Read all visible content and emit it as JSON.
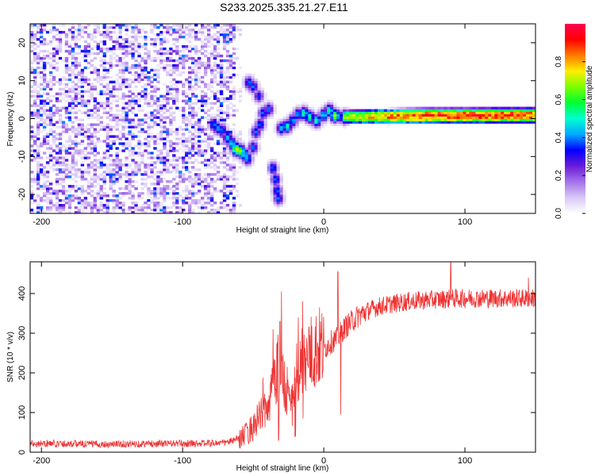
{
  "title": "S233.2025.335.21.27.E11",
  "chart_data": [
    {
      "type": "heatmap",
      "xlabel": "Height of straight line (km)",
      "ylabel": "Frequency (Hz)",
      "xlim": [
        -208,
        150
      ],
      "ylim": [
        -25,
        25
      ],
      "xticks": [
        -200,
        -100,
        0,
        100
      ],
      "yticks": [
        -20,
        -10,
        0,
        10,
        20
      ],
      "colorbar": {
        "label": "Normalized spectral amplitude",
        "range": [
          0,
          1
        ],
        "ticks": [
          "0.0",
          "0.2",
          "0.4",
          "0.6",
          "0.8"
        ],
        "tick_values": [
          0.0,
          0.2,
          0.4,
          0.6,
          0.8
        ],
        "colors": [
          "#ffffff",
          "#d9c8f5",
          "#a472ea",
          "#6a1bd9",
          "#0000ff",
          "#00a9ff",
          "#00ffd0",
          "#00ff33",
          "#7aff00",
          "#ffee00",
          "#ff7a00",
          "#ff0000",
          "#ff0050"
        ]
      },
      "noise_region": {
        "x_range": [
          -208,
          -63
        ],
        "amplitude": 0.25
      },
      "features": [
        {
          "x": -78,
          "f": -1.5,
          "amp": 0.42
        },
        {
          "x": -75,
          "f": -2.5,
          "amp": 0.42
        },
        {
          "x": -72,
          "f": -3,
          "amp": 0.4
        },
        {
          "x": -68,
          "f": -5,
          "amp": 0.45
        },
        {
          "x": -65,
          "f": -6.5,
          "amp": 0.5
        },
        {
          "x": -62,
          "f": -8,
          "amp": 0.75
        },
        {
          "x": -59,
          "f": -8.5,
          "amp": 0.7
        },
        {
          "x": -56,
          "f": -9.5,
          "amp": 0.5
        },
        {
          "x": -54,
          "f": -10.5,
          "amp": 0.45
        },
        {
          "x": -50,
          "f": -7.5,
          "amp": 0.4
        },
        {
          "x": -48,
          "f": -3.5,
          "amp": 0.4
        },
        {
          "x": -53,
          "f": 9.5,
          "amp": 0.4
        },
        {
          "x": -50,
          "f": 8.5,
          "amp": 0.4
        },
        {
          "x": -46,
          "f": 6,
          "amp": 0.35
        },
        {
          "x": -45,
          "f": -1.5,
          "amp": 0.4
        },
        {
          "x": -43,
          "f": 1.5,
          "amp": 0.4
        },
        {
          "x": -39,
          "f": 2.5,
          "amp": 0.4
        },
        {
          "x": -36,
          "f": -13,
          "amp": 0.4
        },
        {
          "x": -34,
          "f": -16,
          "amp": 0.4
        },
        {
          "x": -33,
          "f": -19,
          "amp": 0.4
        },
        {
          "x": -32,
          "f": -21,
          "amp": 0.4
        },
        {
          "x": -30,
          "f": -2.5,
          "amp": 0.45
        },
        {
          "x": -26,
          "f": -2.0,
          "amp": 0.55
        },
        {
          "x": -22,
          "f": -0.5,
          "amp": 0.45
        },
        {
          "x": -18,
          "f": 1.2,
          "amp": 0.45
        },
        {
          "x": -14,
          "f": 1.5,
          "amp": 0.55
        },
        {
          "x": -10,
          "f": 0.5,
          "amp": 0.55
        },
        {
          "x": -5,
          "f": -0.5,
          "amp": 0.55
        },
        {
          "x": 0,
          "f": 1.0,
          "amp": 0.5
        },
        {
          "x": 4,
          "f": 2.2,
          "amp": 0.55
        },
        {
          "x": 8,
          "f": 0.8,
          "amp": 0.7
        },
        {
          "x": 15,
          "f": 0.5,
          "amp": 0.7
        }
      ],
      "ridge": [
        {
          "x": 15,
          "f": 0.5,
          "amp": 0.7,
          "width": 2.0
        },
        {
          "x": 40,
          "f": 0.6,
          "amp": 0.8,
          "width": 2.2
        },
        {
          "x": 60,
          "f": 0.7,
          "amp": 0.85,
          "width": 2.3
        },
        {
          "x": 80,
          "f": 0.8,
          "amp": 0.88,
          "width": 2.3
        },
        {
          "x": 100,
          "f": 0.8,
          "amp": 0.9,
          "width": 2.3
        },
        {
          "x": 125,
          "f": 0.9,
          "amp": 0.88,
          "width": 2.3
        },
        {
          "x": 150,
          "f": 0.9,
          "amp": 0.85,
          "width": 2.3
        }
      ]
    },
    {
      "type": "line",
      "xlabel": "Height of straight line (km)",
      "ylabel": "SNR (10 * v/v)",
      "xlim": [
        -208,
        150
      ],
      "ylim": [
        0,
        480
      ],
      "xticks": [
        -200,
        -100,
        0,
        100
      ],
      "yticks": [
        0,
        100,
        200,
        300,
        400
      ],
      "series": [
        {
          "name": "SNR",
          "color": "#ee3333",
          "x": [
            -208,
            -190,
            -170,
            -150,
            -130,
            -110,
            -90,
            -80,
            -70,
            -65,
            -60,
            -55,
            -50,
            -45,
            -40,
            -35,
            -32,
            -30,
            -28,
            -26,
            -24,
            -22,
            -20,
            -18,
            -15,
            -12,
            -10,
            -8,
            -5,
            -2,
            0,
            3,
            6,
            9,
            12,
            15,
            20,
            25,
            30,
            35,
            40,
            50,
            60,
            70,
            80,
            90,
            100,
            110,
            120,
            130,
            140,
            150
          ],
          "y": [
            22,
            22,
            21,
            20,
            21,
            22,
            22,
            23,
            24,
            28,
            35,
            45,
            65,
            90,
            120,
            170,
            230,
            220,
            160,
            150,
            120,
            140,
            170,
            210,
            230,
            230,
            245,
            255,
            260,
            265,
            260,
            270,
            280,
            285,
            300,
            315,
            330,
            345,
            355,
            362,
            368,
            375,
            380,
            383,
            385,
            387,
            388,
            388,
            388,
            388,
            388,
            388
          ],
          "spikes": [
            {
              "x": -30,
              "y": 405
            },
            {
              "x": -31,
              "y": 330
            },
            {
              "x": -36,
              "y": 310
            },
            {
              "x": -15,
              "y": 380
            },
            {
              "x": -18,
              "y": 340
            },
            {
              "x": 10,
              "y": 455
            },
            {
              "x": 12,
              "y": 95
            },
            {
              "x": 90,
              "y": 478
            },
            {
              "x": 145,
              "y": 440
            },
            {
              "x": -32,
              "y": 30
            },
            {
              "x": -20,
              "y": 40
            }
          ]
        }
      ]
    }
  ]
}
